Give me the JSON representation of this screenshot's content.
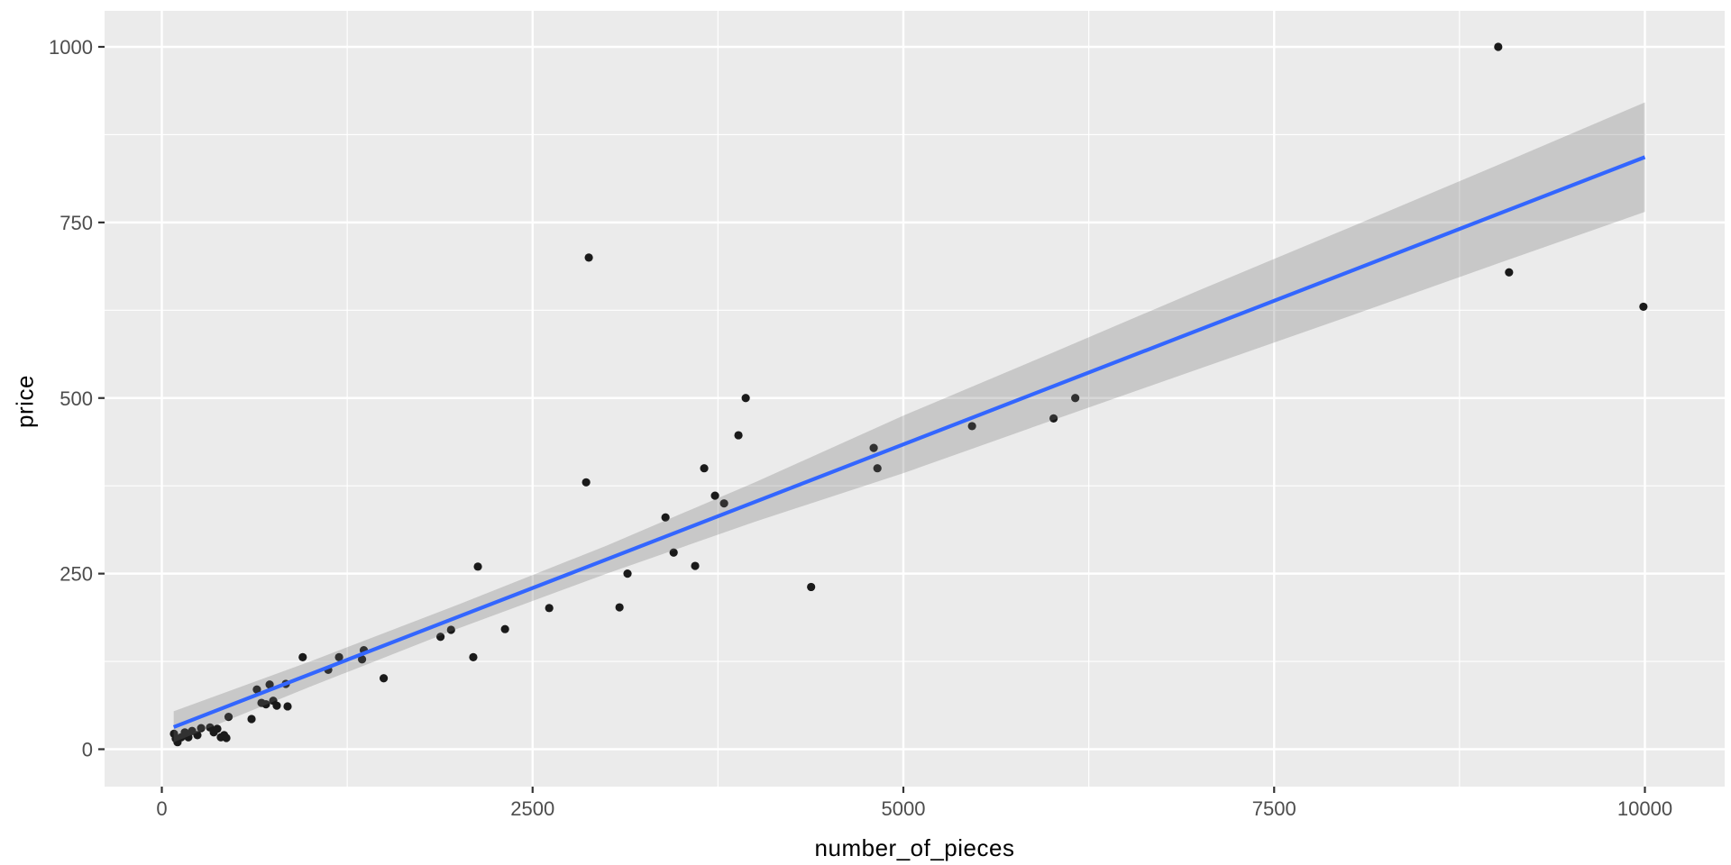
{
  "chart_data": {
    "type": "scatter",
    "title": "",
    "xlabel": "number_of_pieces",
    "ylabel": "price",
    "x_ticks": [
      0,
      2500,
      5000,
      7500,
      10000
    ],
    "x_tick_labels": [
      "0",
      "2500",
      "5000",
      "7500",
      "10000"
    ],
    "y_ticks": [
      0,
      250,
      500,
      750,
      1000
    ],
    "y_tick_labels": [
      "0",
      "250",
      "500",
      "750",
      "1000"
    ],
    "x_minor_ticks": [
      1250,
      3750,
      6250,
      8750
    ],
    "y_minor_ticks": [
      125,
      375,
      625,
      875
    ],
    "xlim": [
      -520,
      10550
    ],
    "ylim": [
      -55,
      1050
    ],
    "grid": "on",
    "legend": "none",
    "points": [
      [
        82,
        22
      ],
      [
        94,
        15
      ],
      [
        106,
        10
      ],
      [
        131,
        17
      ],
      [
        155,
        24
      ],
      [
        179,
        17
      ],
      [
        204,
        26
      ],
      [
        240,
        20
      ],
      [
        265,
        30
      ],
      [
        325,
        31
      ],
      [
        350,
        24
      ],
      [
        374,
        29
      ],
      [
        398,
        17
      ],
      [
        420,
        20
      ],
      [
        435,
        16
      ],
      [
        450,
        46
      ],
      [
        605,
        43
      ],
      [
        641,
        85
      ],
      [
        672,
        66
      ],
      [
        702,
        64
      ],
      [
        727,
        92
      ],
      [
        751,
        69
      ],
      [
        775,
        62
      ],
      [
        836,
        93
      ],
      [
        848,
        61
      ],
      [
        950,
        131
      ],
      [
        1122,
        113
      ],
      [
        1195,
        131
      ],
      [
        1350,
        128
      ],
      [
        1362,
        141
      ],
      [
        1496,
        101
      ],
      [
        1879,
        160
      ],
      [
        1950,
        170
      ],
      [
        2100,
        131
      ],
      [
        2131,
        260
      ],
      [
        2314,
        171
      ],
      [
        2612,
        201
      ],
      [
        2861,
        380
      ],
      [
        2879,
        700
      ],
      [
        3086,
        202
      ],
      [
        3140,
        250
      ],
      [
        3396,
        330
      ],
      [
        3451,
        280
      ],
      [
        3596,
        261
      ],
      [
        3657,
        400
      ],
      [
        3730,
        361
      ],
      [
        3791,
        350
      ],
      [
        3888,
        447
      ],
      [
        3937,
        500
      ],
      [
        4378,
        231
      ],
      [
        4800,
        429
      ],
      [
        4825,
        400
      ],
      [
        5463,
        460
      ],
      [
        6013,
        471
      ],
      [
        6159,
        500
      ],
      [
        9011,
        1000
      ],
      [
        9084,
        679
      ],
      [
        9990,
        630
      ]
    ],
    "smooth_line": {
      "method": "lm",
      "x_start": 80,
      "x_end": 10000,
      "intercept": 25,
      "slope": 0.0818
    },
    "confidence_band": {
      "x": [
        80,
        1000,
        2000,
        3000,
        4000,
        5000,
        6000,
        7000,
        8000,
        9000,
        10000
      ],
      "upper": [
        54,
        125,
        206,
        290,
        380,
        475,
        564,
        654,
        742,
        831,
        921
      ],
      "lower": [
        10,
        89,
        172,
        250,
        324,
        393,
        468,
        542,
        616,
        691,
        765
      ]
    },
    "colors": {
      "panel_background": "#EBEBEB",
      "gridline": "#FFFFFF",
      "point": "#1A1A1A",
      "smooth_line": "#3366FF",
      "band_fill": "#6E6E6E",
      "band_opacity": 0.28,
      "tick_mark": "#333333",
      "tick_label": "#4D4D4D",
      "axis_title": "#000000",
      "outer_background": "#FFFFFF"
    }
  }
}
